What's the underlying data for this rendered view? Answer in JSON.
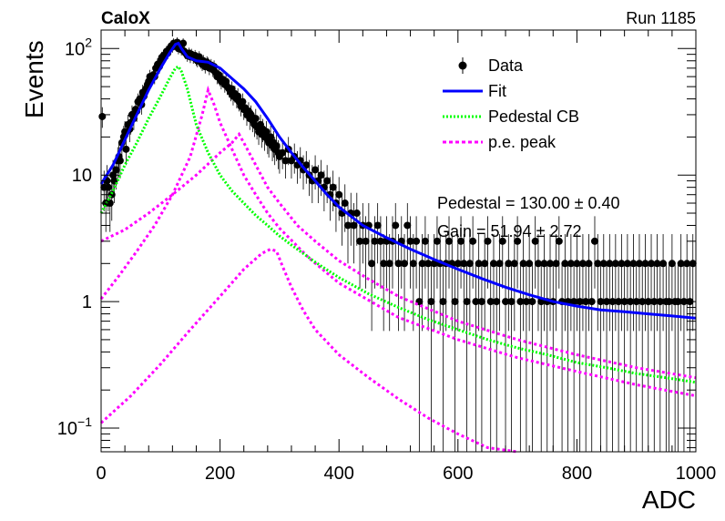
{
  "chart_data": {
    "type": "scatter",
    "experiment_label": "CaloX",
    "run_label": "Run 1185",
    "xlabel": "ADC",
    "ylabel": "Events",
    "xlim": [
      0,
      1000
    ],
    "ylim": [
      0.065,
      140
    ],
    "y_scale": "log",
    "x_ticks": [
      {
        "value": 0,
        "label": "0"
      },
      {
        "value": 200,
        "label": "200"
      },
      {
        "value": 400,
        "label": "400"
      },
      {
        "value": 600,
        "label": "600"
      },
      {
        "value": 800,
        "label": "800"
      },
      {
        "value": 1000,
        "label": "1000"
      }
    ],
    "y_ticks": [
      {
        "value": 0.1,
        "label": "10",
        "exp": "−1"
      },
      {
        "value": 1,
        "label": "1",
        "exp": ""
      },
      {
        "value": 10,
        "label": "10",
        "exp": ""
      },
      {
        "value": 100,
        "label": "10",
        "exp": "2"
      }
    ],
    "grid": false,
    "legend_position": "top-right",
    "legend": [
      {
        "key": "data",
        "label": "Data"
      },
      {
        "key": "fit",
        "label": "Fit"
      },
      {
        "key": "pedestal",
        "label": "Pedestal CB"
      },
      {
        "key": "pe",
        "label": "p.e. peak"
      }
    ],
    "annotations": [
      {
        "key": "pedestal",
        "text": "Pedestal = 130.00 ± 0.40"
      },
      {
        "key": "gain",
        "text": "Gain = 51.94 ± 2.72"
      }
    ],
    "colors": {
      "data": "#000000",
      "fit": "#0000ff",
      "pedestal": "#00ff00",
      "pe": "#ff00ff"
    },
    "data_points": [
      [
        2,
        29
      ],
      [
        5,
        8
      ],
      [
        8,
        6
      ],
      [
        10,
        9
      ],
      [
        12,
        8
      ],
      [
        15,
        6
      ],
      [
        18,
        7
      ],
      [
        20,
        10
      ],
      [
        22,
        9
      ],
      [
        25,
        11
      ],
      [
        28,
        13
      ],
      [
        30,
        14
      ],
      [
        32,
        13
      ],
      [
        35,
        18
      ],
      [
        38,
        20
      ],
      [
        40,
        22
      ],
      [
        42,
        16
      ],
      [
        45,
        25
      ],
      [
        48,
        23
      ],
      [
        50,
        26
      ],
      [
        52,
        30
      ],
      [
        55,
        28
      ],
      [
        58,
        33
      ],
      [
        60,
        32
      ],
      [
        62,
        38
      ],
      [
        65,
        40
      ],
      [
        68,
        36
      ],
      [
        70,
        45
      ],
      [
        72,
        42
      ],
      [
        75,
        48
      ],
      [
        78,
        52
      ],
      [
        80,
        55
      ],
      [
        82,
        60
      ],
      [
        85,
        58
      ],
      [
        88,
        62
      ],
      [
        90,
        60
      ],
      [
        92,
        70
      ],
      [
        95,
        75
      ],
      [
        98,
        72
      ],
      [
        100,
        80
      ],
      [
        102,
        85
      ],
      [
        105,
        88
      ],
      [
        108,
        90
      ],
      [
        110,
        95
      ],
      [
        112,
        92
      ],
      [
        115,
        100
      ],
      [
        118,
        105
      ],
      [
        120,
        103
      ],
      [
        122,
        110
      ],
      [
        125,
        108
      ],
      [
        128,
        112
      ],
      [
        130,
        100
      ],
      [
        132,
        105
      ],
      [
        135,
        98
      ],
      [
        138,
        110
      ],
      [
        140,
        95
      ],
      [
        142,
        92
      ],
      [
        145,
        88
      ],
      [
        148,
        92
      ],
      [
        150,
        86
      ],
      [
        152,
        90
      ],
      [
        155,
        85
      ],
      [
        158,
        88
      ],
      [
        160,
        82
      ],
      [
        162,
        80
      ],
      [
        165,
        86
      ],
      [
        168,
        78
      ],
      [
        170,
        75
      ],
      [
        172,
        80
      ],
      [
        175,
        72
      ],
      [
        178,
        78
      ],
      [
        180,
        76
      ],
      [
        182,
        70
      ],
      [
        185,
        74
      ],
      [
        188,
        68
      ],
      [
        190,
        72
      ],
      [
        192,
        65
      ],
      [
        195,
        60
      ],
      [
        198,
        62
      ],
      [
        200,
        58
      ],
      [
        202,
        55
      ],
      [
        205,
        57
      ],
      [
        208,
        52
      ],
      [
        210,
        55
      ],
      [
        212,
        50
      ],
      [
        215,
        48
      ],
      [
        218,
        45
      ],
      [
        220,
        48
      ],
      [
        222,
        42
      ],
      [
        225,
        44
      ],
      [
        228,
        40
      ],
      [
        230,
        42
      ],
      [
        232,
        38
      ],
      [
        235,
        35
      ],
      [
        238,
        38
      ],
      [
        240,
        33
      ],
      [
        242,
        34
      ],
      [
        245,
        30
      ],
      [
        248,
        32
      ],
      [
        250,
        28
      ],
      [
        252,
        30
      ],
      [
        255,
        27
      ],
      [
        258,
        25
      ],
      [
        260,
        28
      ],
      [
        262,
        24
      ],
      [
        265,
        22
      ],
      [
        268,
        25
      ],
      [
        270,
        21
      ],
      [
        272,
        23
      ],
      [
        275,
        20
      ],
      [
        278,
        22
      ],
      [
        280,
        19
      ],
      [
        282,
        18
      ],
      [
        285,
        20
      ],
      [
        288,
        17
      ],
      [
        290,
        18
      ],
      [
        292,
        16
      ],
      [
        295,
        17
      ],
      [
        298,
        15
      ],
      [
        300,
        14
      ],
      [
        305,
        15
      ],
      [
        310,
        13
      ],
      [
        315,
        16
      ],
      [
        320,
        13
      ],
      [
        325,
        14
      ],
      [
        330,
        12
      ],
      [
        335,
        13
      ],
      [
        340,
        11
      ],
      [
        345,
        12
      ],
      [
        350,
        10
      ],
      [
        355,
        9
      ],
      [
        360,
        11
      ],
      [
        365,
        9
      ],
      [
        370,
        10
      ],
      [
        375,
        8
      ],
      [
        380,
        9
      ],
      [
        385,
        7
      ],
      [
        390,
        8
      ],
      [
        395,
        6
      ],
      [
        400,
        7
      ],
      [
        405,
        5
      ],
      [
        410,
        6
      ],
      [
        415,
        4
      ],
      [
        420,
        5
      ],
      [
        425,
        4
      ],
      [
        430,
        5
      ],
      [
        435,
        3
      ],
      [
        440,
        4
      ],
      [
        445,
        3
      ],
      [
        450,
        4
      ],
      [
        455,
        2
      ],
      [
        460,
        3
      ],
      [
        465,
        4
      ],
      [
        470,
        3
      ],
      [
        475,
        2
      ],
      [
        480,
        3
      ],
      [
        485,
        2
      ],
      [
        490,
        3
      ],
      [
        495,
        4
      ],
      [
        500,
        2
      ],
      [
        505,
        3
      ],
      [
        510,
        2
      ],
      [
        515,
        4
      ],
      [
        520,
        3
      ],
      [
        525,
        2
      ],
      [
        530,
        3
      ],
      [
        535,
        1
      ],
      [
        540,
        2
      ],
      [
        545,
        3
      ],
      [
        550,
        2
      ],
      [
        555,
        1
      ],
      [
        560,
        2
      ],
      [
        565,
        3
      ],
      [
        570,
        2
      ],
      [
        575,
        1
      ],
      [
        580,
        2
      ],
      [
        585,
        3
      ],
      [
        590,
        2
      ],
      [
        595,
        1
      ],
      [
        600,
        2
      ],
      [
        605,
        3
      ],
      [
        610,
        2
      ],
      [
        615,
        1
      ],
      [
        620,
        2
      ],
      [
        625,
        3
      ],
      [
        630,
        1
      ],
      [
        635,
        2
      ],
      [
        640,
        1
      ],
      [
        645,
        2
      ],
      [
        650,
        3
      ],
      [
        655,
        1
      ],
      [
        660,
        2
      ],
      [
        665,
        1
      ],
      [
        670,
        2
      ],
      [
        675,
        3
      ],
      [
        680,
        1
      ],
      [
        685,
        2
      ],
      [
        690,
        1
      ],
      [
        695,
        2
      ],
      [
        700,
        3
      ],
      [
        705,
        1
      ],
      [
        710,
        2
      ],
      [
        715,
        1
      ],
      [
        720,
        2
      ],
      [
        725,
        1
      ],
      [
        730,
        3
      ],
      [
        735,
        2
      ],
      [
        740,
        1
      ],
      [
        745,
        2
      ],
      [
        750,
        1
      ],
      [
        755,
        2
      ],
      [
        760,
        1
      ],
      [
        765,
        2
      ],
      [
        770,
        3
      ],
      [
        775,
        1
      ],
      [
        780,
        2
      ],
      [
        785,
        1
      ],
      [
        790,
        2
      ],
      [
        795,
        1
      ],
      [
        800,
        2
      ],
      [
        805,
        1
      ],
      [
        810,
        2
      ],
      [
        815,
        1
      ],
      [
        820,
        2
      ],
      [
        825,
        1
      ],
      [
        830,
        3
      ],
      [
        835,
        2
      ],
      [
        840,
        1
      ],
      [
        845,
        2
      ],
      [
        850,
        1
      ],
      [
        855,
        2
      ],
      [
        860,
        1
      ],
      [
        865,
        2
      ],
      [
        870,
        1
      ],
      [
        875,
        2
      ],
      [
        880,
        1
      ],
      [
        885,
        2
      ],
      [
        890,
        1
      ],
      [
        895,
        2
      ],
      [
        900,
        1
      ],
      [
        905,
        2
      ],
      [
        910,
        1
      ],
      [
        915,
        2
      ],
      [
        920,
        1
      ],
      [
        925,
        2
      ],
      [
        930,
        1
      ],
      [
        935,
        2
      ],
      [
        940,
        1
      ],
      [
        945,
        2
      ],
      [
        950,
        1
      ],
      [
        955,
        1
      ],
      [
        960,
        2
      ],
      [
        965,
        1
      ],
      [
        970,
        1
      ],
      [
        975,
        2
      ],
      [
        980,
        1
      ],
      [
        985,
        2
      ],
      [
        990,
        1
      ],
      [
        995,
        2
      ]
    ],
    "fit_curve": [
      [
        0,
        8.5
      ],
      [
        20,
        12
      ],
      [
        40,
        19
      ],
      [
        60,
        30
      ],
      [
        80,
        47
      ],
      [
        100,
        70
      ],
      [
        115,
        92
      ],
      [
        125,
        108
      ],
      [
        130,
        110
      ],
      [
        135,
        100
      ],
      [
        145,
        86
      ],
      [
        160,
        80
      ],
      [
        180,
        78
      ],
      [
        200,
        70
      ],
      [
        220,
        58
      ],
      [
        240,
        48
      ],
      [
        260,
        38
      ],
      [
        280,
        28
      ],
      [
        300,
        20
      ],
      [
        320,
        15
      ],
      [
        340,
        11.5
      ],
      [
        360,
        9
      ],
      [
        380,
        7
      ],
      [
        400,
        5.6
      ],
      [
        440,
        4
      ],
      [
        480,
        3.2
      ],
      [
        520,
        2.6
      ],
      [
        560,
        2.15
      ],
      [
        600,
        1.8
      ],
      [
        640,
        1.52
      ],
      [
        680,
        1.3
      ],
      [
        720,
        1.13
      ],
      [
        760,
        1.0
      ],
      [
        800,
        0.92
      ],
      [
        840,
        0.86
      ],
      [
        880,
        0.83
      ],
      [
        920,
        0.8
      ],
      [
        960,
        0.77
      ],
      [
        1000,
        0.74
      ]
    ],
    "pedestal_curve": [
      [
        0,
        5
      ],
      [
        20,
        7.5
      ],
      [
        40,
        12
      ],
      [
        60,
        18
      ],
      [
        80,
        28
      ],
      [
        100,
        42
      ],
      [
        115,
        58
      ],
      [
        125,
        70
      ],
      [
        130,
        72
      ],
      [
        135,
        66
      ],
      [
        145,
        48
      ],
      [
        160,
        25
      ],
      [
        180,
        15
      ],
      [
        200,
        10
      ],
      [
        220,
        7.5
      ],
      [
        240,
        6
      ],
      [
        260,
        4.8
      ],
      [
        280,
        4
      ],
      [
        300,
        3.3
      ],
      [
        320,
        2.8
      ],
      [
        340,
        2.4
      ],
      [
        360,
        2.05
      ],
      [
        380,
        1.78
      ],
      [
        400,
        1.55
      ],
      [
        450,
        1.15
      ],
      [
        500,
        0.9
      ],
      [
        550,
        0.72
      ],
      [
        600,
        0.6
      ],
      [
        650,
        0.5
      ],
      [
        700,
        0.43
      ],
      [
        750,
        0.38
      ],
      [
        800,
        0.33
      ],
      [
        850,
        0.3
      ],
      [
        900,
        0.27
      ],
      [
        950,
        0.25
      ],
      [
        1000,
        0.23
      ]
    ],
    "pe_curves": [
      [
        [
          0,
          1.05
        ],
        [
          30,
          1.6
        ],
        [
          60,
          2.5
        ],
        [
          90,
          4
        ],
        [
          120,
          7
        ],
        [
          150,
          14
        ],
        [
          170,
          30
        ],
        [
          180,
          47
        ],
        [
          190,
          36
        ],
        [
          200,
          26
        ],
        [
          220,
          16
        ],
        [
          240,
          10
        ],
        [
          260,
          7
        ],
        [
          280,
          5
        ],
        [
          300,
          3.8
        ],
        [
          350,
          2.2
        ],
        [
          400,
          1.4
        ],
        [
          500,
          0.75
        ],
        [
          600,
          0.5
        ],
        [
          700,
          0.36
        ],
        [
          800,
          0.28
        ],
        [
          900,
          0.22
        ],
        [
          1000,
          0.18
        ]
      ],
      [
        [
          0,
          3
        ],
        [
          40,
          3.7
        ],
        [
          80,
          5
        ],
        [
          120,
          7
        ],
        [
          160,
          10
        ],
        [
          200,
          15
        ],
        [
          220,
          18
        ],
        [
          232,
          21
        ],
        [
          240,
          18
        ],
        [
          260,
          12
        ],
        [
          280,
          8
        ],
        [
          300,
          6
        ],
        [
          330,
          4
        ],
        [
          360,
          3
        ],
        [
          400,
          2.1
        ],
        [
          450,
          1.5
        ],
        [
          500,
          1.1
        ],
        [
          600,
          0.7
        ],
        [
          700,
          0.5
        ],
        [
          800,
          0.38
        ],
        [
          900,
          0.3
        ],
        [
          1000,
          0.25
        ]
      ],
      [
        [
          0,
          0.11
        ],
        [
          50,
          0.18
        ],
        [
          100,
          0.32
        ],
        [
          150,
          0.6
        ],
        [
          200,
          1.1
        ],
        [
          240,
          1.8
        ],
        [
          270,
          2.4
        ],
        [
          285,
          2.6
        ],
        [
          295,
          2.5
        ],
        [
          305,
          1.9
        ],
        [
          320,
          1.3
        ],
        [
          340,
          0.85
        ],
        [
          360,
          0.6
        ],
        [
          400,
          0.38
        ],
        [
          450,
          0.25
        ],
        [
          500,
          0.17
        ],
        [
          550,
          0.12
        ],
        [
          600,
          0.09
        ],
        [
          650,
          0.07
        ],
        [
          700,
          0.06
        ]
      ]
    ]
  }
}
